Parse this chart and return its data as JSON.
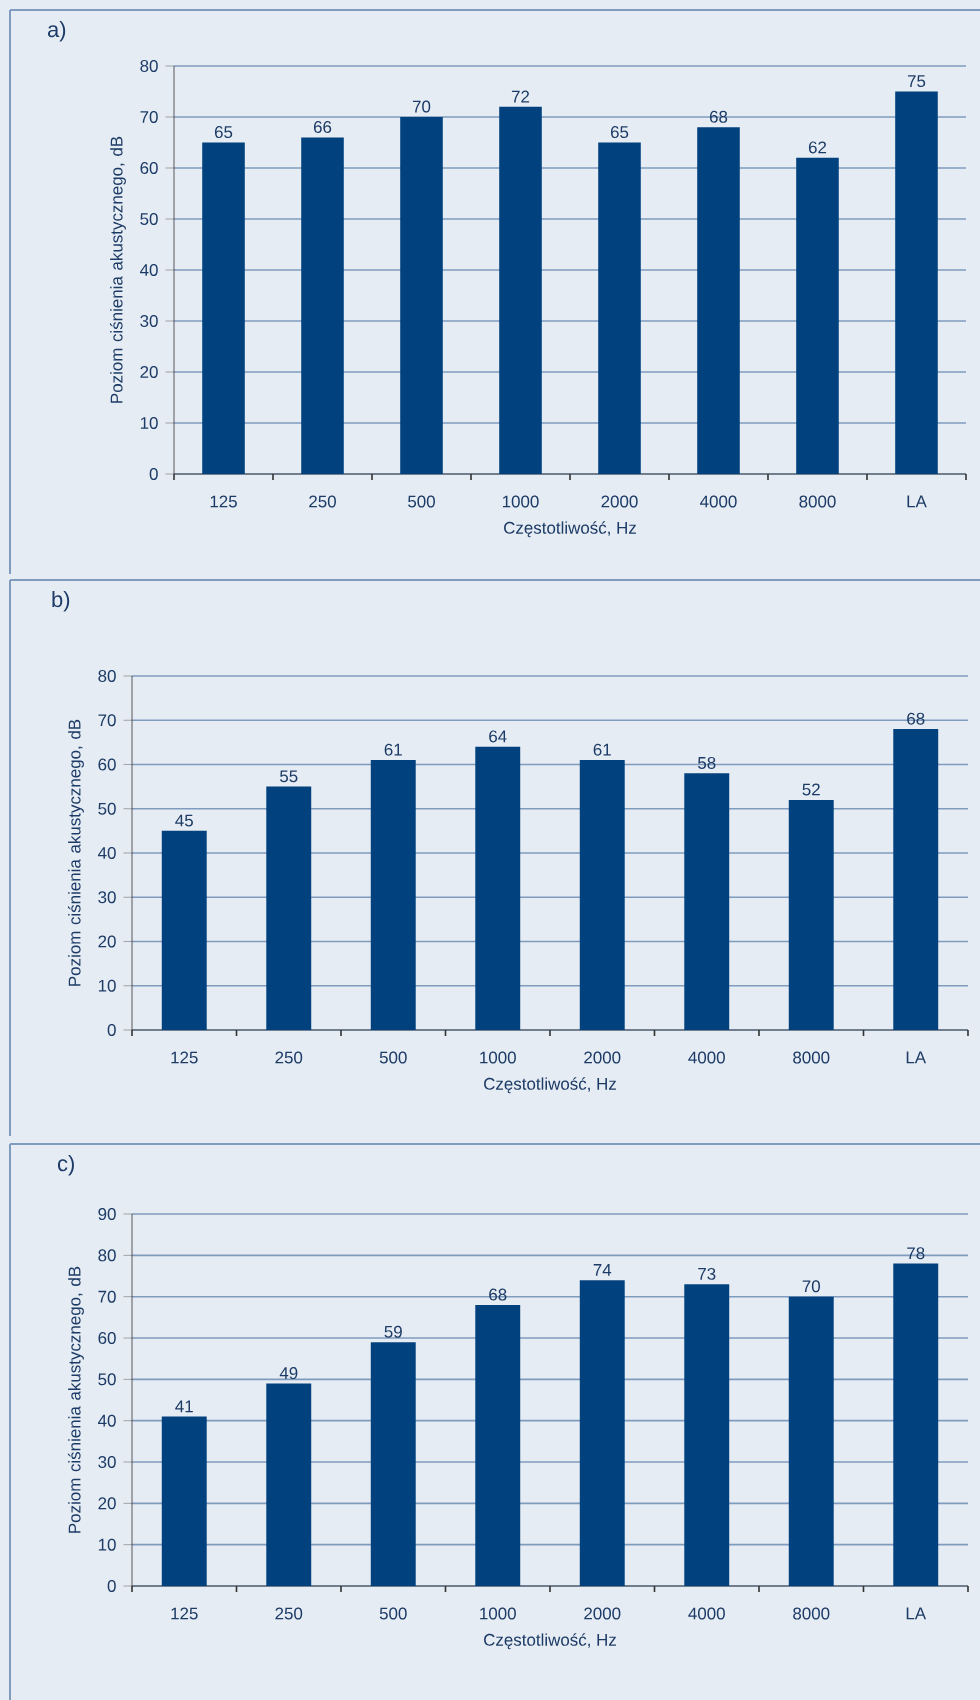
{
  "chart_data": [
    {
      "type": "bar",
      "title": "a)",
      "xlabel": "Częstotliwość, Hz",
      "ylabel": "Poziom ciśnienia akustycznego, dB",
      "categories": [
        "125",
        "250",
        "500",
        "1000",
        "2000",
        "4000",
        "8000",
        "LA"
      ],
      "values": [
        65,
        66,
        70,
        72,
        65,
        68,
        62,
        75
      ],
      "color": "#00417e",
      "ylim": [
        0,
        80
      ],
      "yticks": [
        0,
        10,
        20,
        30,
        40,
        50,
        60,
        70,
        80
      ],
      "grid": "y",
      "data_labels": true
    },
    {
      "type": "bar",
      "title": "b)",
      "xlabel": "Częstotliwość, Hz",
      "ylabel": "Poziom ciśnienia akustycznego, dB",
      "categories": [
        "125",
        "250",
        "500",
        "1000",
        "2000",
        "4000",
        "8000",
        "LA"
      ],
      "values": [
        45,
        55,
        61,
        64,
        61,
        58,
        52,
        68
      ],
      "color": "#00417e",
      "ylim": [
        0,
        80
      ],
      "yticks": [
        0,
        10,
        20,
        30,
        40,
        50,
        60,
        70,
        80
      ],
      "grid": "y",
      "data_labels": true
    },
    {
      "type": "bar",
      "title": "c)",
      "xlabel": "Częstotliwość, Hz",
      "ylabel": "Poziom ciśnienia akustycznego, dB",
      "categories": [
        "125",
        "250",
        "500",
        "1000",
        "2000",
        "4000",
        "8000",
        "LA"
      ],
      "values": [
        41,
        49,
        59,
        68,
        74,
        73,
        70,
        78
      ],
      "color": "#00417e",
      "ylim": [
        0,
        90
      ],
      "yticks": [
        0,
        10,
        20,
        30,
        40,
        50,
        60,
        70,
        80,
        90
      ],
      "grid": "y",
      "data_labels": true
    }
  ]
}
